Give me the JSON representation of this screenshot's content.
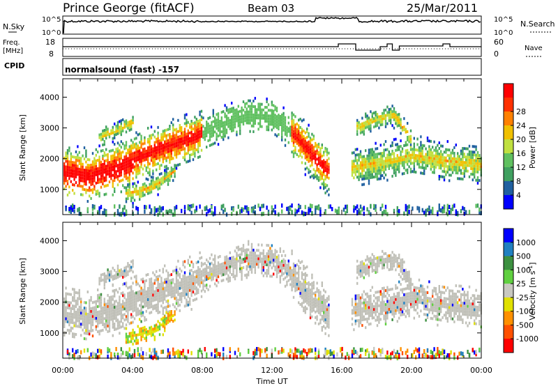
{
  "header": {
    "station": "Prince George (fitACF)",
    "beam": "Beam 03",
    "date": "25/Mar/2011"
  },
  "panels": {
    "sky": {
      "left_label": "N.Sky",
      "right_label": "N.Search",
      "ticks": [
        "10^5",
        "10^0"
      ]
    },
    "freq": {
      "left_label_1": "Freq.",
      "left_label_2": "[MHz]",
      "right_label": "Nave",
      "left_ticks": [
        "18",
        "8"
      ],
      "right_ticks": [
        "60",
        "0"
      ]
    },
    "cpid": {
      "label": "CPID",
      "value": "normalsound (fast) -157"
    }
  },
  "colors": {
    "power_scale": [
      "#0000ff",
      "#2060a0",
      "#40a060",
      "#60c060",
      "#c0e040",
      "#f0c000",
      "#ff8000",
      "#ff3000",
      "#ff0000"
    ],
    "velocity_scale": [
      "#0000ff",
      "#2080c0",
      "#3c9040",
      "#60d040",
      "#c8c8c0",
      "#e0e000",
      "#ff9000",
      "#ff5000",
      "#ff0000"
    ],
    "ground_scatter": "#c0c0b8"
  },
  "chart_data": [
    {
      "type": "heatmap",
      "name": "power",
      "ylabel": "Slant Range [km]",
      "xlabel": "Time UT",
      "x_ticks": [
        "00:00",
        "04:00",
        "08:00",
        "12:00",
        "16:00",
        "20:00",
        "00:00"
      ],
      "xlim_hours": [
        0,
        24
      ],
      "y_ticks": [
        1000,
        2000,
        3000,
        4000
      ],
      "ylim": [
        180,
        4600
      ],
      "colorbar": {
        "label": "Power [dB]",
        "ticks": [
          4,
          8,
          12,
          16,
          20,
          24,
          28
        ],
        "range": [
          0,
          32
        ]
      },
      "features": [
        {
          "band": "main",
          "points": [
            [
              0,
              1650
            ],
            [
              2,
              1500
            ],
            [
              4,
              1900
            ],
            [
              6,
              2300
            ],
            [
              8,
              2800
            ],
            [
              10,
              3300
            ],
            [
              12,
              3200
            ],
            [
              14,
              2400
            ],
            [
              15.2,
              1600
            ]
          ]
        },
        {
          "band": "lower_arc",
          "points": [
            [
              3.5,
              850
            ],
            [
              5,
              1050
            ],
            [
              6.3,
              1500
            ]
          ]
        },
        {
          "band": "late_trail",
          "points": [
            [
              16.5,
              1700
            ],
            [
              18,
              1900
            ],
            [
              20,
              2100
            ],
            [
              22,
              1900
            ],
            [
              24,
              1800
            ]
          ]
        }
      ]
    },
    {
      "type": "heatmap",
      "name": "velocity",
      "ylabel": "Slant Range [km]",
      "xlabel": "Time UT",
      "x_ticks": [
        "00:00",
        "04:00",
        "08:00",
        "12:00",
        "16:00",
        "20:00",
        "00:00"
      ],
      "xlim_hours": [
        0,
        24
      ],
      "y_ticks": [
        1000,
        2000,
        3000,
        4000
      ],
      "ylim": [
        180,
        4600
      ],
      "colorbar": {
        "label": "Velocity [m s^-1]",
        "ticks": [
          1000,
          500,
          100,
          25,
          -25,
          -100,
          -500,
          -1000
        ]
      }
    }
  ]
}
